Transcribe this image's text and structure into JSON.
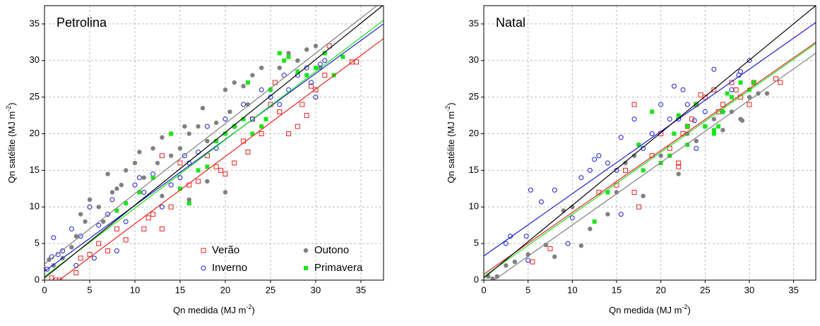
{
  "chart_data": [
    {
      "type": "scatter",
      "title": "Petrolina",
      "x_label": {
        "text": "Qn medida (MJ m",
        "sup": "-2",
        "end": ")"
      },
      "y_label": {
        "text": "Qn satélite (MJ m",
        "sup": "-2",
        "end": ")"
      },
      "xlim": [
        0,
        37.5
      ],
      "ylim": [
        0,
        37.5
      ],
      "xticks": [
        0,
        5,
        10,
        15,
        20,
        25,
        30,
        35
      ],
      "yticks": [
        0,
        5,
        10,
        15,
        20,
        25,
        30,
        35
      ],
      "grid": true,
      "legend": true,
      "legend_position": "lower right",
      "overall_fit": {
        "color": "#000000",
        "x": [
          0,
          37.5
        ],
        "y": [
          0.3,
          37.6
        ]
      },
      "series": [
        {
          "name": "Verão",
          "color": "#e8231f",
          "marker": "open-square",
          "x": [
            0.8,
            1.2,
            1.7,
            3.5,
            4,
            5,
            6,
            7,
            8,
            9,
            11,
            11.5,
            12,
            13,
            13,
            14,
            15,
            16,
            17,
            18,
            19,
            19.5,
            20,
            21,
            22,
            22.5,
            23,
            24,
            25,
            25.5,
            26,
            27,
            28,
            28.5,
            29,
            29.5,
            30,
            31,
            31.5,
            34,
            34.5
          ],
          "values": [
            0.3,
            0,
            0,
            1,
            3,
            3.5,
            5,
            4,
            7,
            5.5,
            7,
            8.5,
            9,
            7,
            17,
            10,
            16,
            13,
            13.5,
            17,
            15.5,
            15,
            14.5,
            16,
            19,
            17.5,
            22,
            20,
            24,
            27,
            23,
            20,
            21,
            24,
            22.5,
            26.5,
            26,
            28,
            32,
            29.8,
            29.8
          ],
          "fit": {
            "x": [
              0,
              37.5
            ],
            "y": [
              -1.5,
              33
            ]
          }
        },
        {
          "name": "Outono",
          "color": "#808080",
          "marker": "filled-circle",
          "x": [
            0.5,
            1,
            2,
            3,
            3.5,
            4,
            4.5,
            5,
            6,
            6.5,
            7,
            7.5,
            8,
            8.5,
            9,
            10,
            10.5,
            11,
            12,
            12.5,
            13,
            14,
            14,
            15,
            15.5,
            16,
            17,
            17.5,
            18,
            19,
            20,
            20.5,
            21,
            22,
            22.5,
            23,
            24,
            25,
            26,
            27,
            28,
            29,
            30,
            30.5,
            20,
            18,
            16,
            13
          ],
          "values": [
            2.8,
            2,
            3,
            4.5,
            6,
            9,
            8,
            11,
            10,
            8,
            14.5,
            12,
            12.5,
            13,
            15,
            16,
            17.5,
            14,
            18,
            16,
            19.5,
            17,
            20,
            18,
            21,
            20,
            21,
            23.5,
            19,
            21.5,
            26,
            23,
            27,
            26.5,
            24,
            28,
            29,
            26,
            29,
            31,
            30,
            31.5,
            32,
            29,
            12,
            13.5,
            11,
            11.5
          ],
          "fit": {
            "x": [
              0,
              37.5
            ],
            "y": [
              2.2,
              38.2
            ]
          }
        },
        {
          "name": "Inverno",
          "color": "#1c1cd6",
          "marker": "open-circle",
          "x": [
            0.3,
            0.8,
            1,
            1.5,
            2,
            3,
            3.5,
            4,
            5,
            5.5,
            6,
            7,
            7.5,
            8,
            9,
            10,
            10.5,
            11,
            12,
            13,
            14,
            15,
            15.5,
            16,
            17,
            18,
            19,
            20,
            21,
            22,
            23,
            24,
            25,
            26,
            26.5,
            27,
            28,
            29,
            29.5,
            30,
            30.5,
            31
          ],
          "values": [
            1.5,
            3.2,
            5.8,
            3.5,
            4,
            7,
            2,
            6,
            10,
            3,
            7.5,
            9,
            11,
            4,
            8,
            13,
            14,
            12,
            14.5,
            10,
            13,
            14,
            17,
            16,
            17.5,
            21,
            18,
            22,
            21,
            24,
            22,
            26,
            25,
            24,
            28,
            26,
            28,
            29,
            27,
            25,
            29.5,
            30
          ],
          "fit": {
            "x": [
              0,
              37.5
            ],
            "y": [
              1.2,
              35
            ]
          }
        },
        {
          "name": "Primavera",
          "color": "#19e619",
          "marker": "filled-square",
          "x": [
            8,
            9,
            10.5,
            12,
            14,
            15,
            16,
            17,
            18,
            19,
            20,
            21,
            22,
            23,
            24,
            25,
            26,
            26.5,
            27,
            28,
            29,
            30,
            31,
            32,
            33,
            24.5,
            22.5
          ],
          "values": [
            9.5,
            10.5,
            12,
            14,
            20,
            12.5,
            10.5,
            15,
            15.5,
            19,
            20,
            21,
            22,
            20,
            21,
            26,
            31,
            30,
            30.5,
            28.5,
            28,
            29,
            31,
            28,
            30.5,
            22,
            27
          ],
          "fit": {
            "x": [
              0,
              37.5
            ],
            "y": [
              0.5,
              35.5
            ]
          }
        }
      ]
    },
    {
      "type": "scatter",
      "title": "Natal",
      "x_label": {
        "text": "Qn medida (MJ m",
        "sup": "-2",
        "end": ")"
      },
      "y_label": {
        "text": "Qn satélite (MJ m",
        "sup": "-2",
        "end": ")"
      },
      "xlim": [
        0,
        37.5
      ],
      "ylim": [
        0,
        37.5
      ],
      "xticks": [
        0,
        5,
        10,
        15,
        20,
        25,
        30,
        35
      ],
      "yticks": [
        0,
        5,
        10,
        15,
        20,
        25,
        30,
        35
      ],
      "grid": true,
      "legend": false,
      "overall_fit": {
        "color": "#000000",
        "x": [
          0,
          37.5
        ],
        "y": [
          0.3,
          37.5
        ]
      },
      "series": [
        {
          "name": "Verão",
          "color": "#e8231f",
          "marker": "open-square",
          "x": [
            5.5,
            7.5,
            13,
            15,
            16,
            17,
            17,
            17.5,
            19,
            20,
            21,
            22,
            22,
            22.5,
            23,
            24,
            25,
            26,
            27,
            28,
            29,
            30,
            30.5,
            33,
            33.5,
            24.5,
            28.5,
            26.5,
            23.5
          ],
          "values": [
            2.5,
            4.3,
            12,
            13,
            15,
            24,
            12,
            10,
            17,
            20,
            18,
            16,
            15.5,
            20,
            21,
            24,
            25,
            26,
            24,
            27,
            25,
            24,
            27,
            27.5,
            27,
            25.3,
            26,
            23,
            22
          ],
          "fit": {
            "x": [
              0,
              37.5
            ],
            "y": [
              0.8,
              32.5
            ]
          }
        },
        {
          "name": "Outono",
          "color": "#808080",
          "marker": "filled-circle",
          "x": [
            0.5,
            1,
            1.5,
            2.5,
            3.5,
            5,
            7,
            8,
            9,
            10,
            11,
            12,
            14,
            15,
            16,
            17,
            18,
            20,
            21,
            22,
            23,
            24,
            25,
            26,
            28,
            29,
            30,
            31,
            32,
            27,
            29.2
          ],
          "values": [
            0.5,
            0.2,
            0.5,
            2,
            2.5,
            3.5,
            4.8,
            3.2,
            9.5,
            10,
            4.7,
            7,
            9,
            12,
            16,
            17,
            11.5,
            17,
            17,
            14.5,
            20,
            19,
            21,
            22,
            23,
            22,
            25,
            25.5,
            25.5,
            20.5,
            21.8
          ],
          "fit": {
            "x": [
              0,
              37.5
            ],
            "y": [
              -1,
              31
            ]
          }
        },
        {
          "name": "Inverno",
          "color": "#1c1cd6",
          "marker": "open-circle",
          "x": [
            2.5,
            3,
            4.8,
            5,
            5.3,
            6.5,
            8,
            9.5,
            10,
            11,
            12,
            12.5,
            13,
            14,
            15,
            15.5,
            15.5,
            17,
            18,
            19,
            20,
            21,
            21.5,
            22,
            22.5,
            23,
            24,
            25,
            26,
            27,
            28,
            29,
            30,
            28.8,
            23.8
          ],
          "values": [
            5,
            6,
            6,
            2.7,
            12.3,
            10.7,
            12.3,
            5,
            8.5,
            14,
            15,
            16.5,
            17,
            16,
            15,
            19.5,
            9,
            22,
            18,
            20,
            24,
            22,
            26.5,
            22,
            26,
            24,
            18,
            23,
            28.8,
            23,
            26,
            28.5,
            30,
            28,
            21.8
          ],
          "fit": {
            "x": [
              0,
              37.5
            ],
            "y": [
              3.3,
              35.2
            ]
          }
        },
        {
          "name": "Primavera",
          "color": "#19e619",
          "marker": "filled-square",
          "x": [
            12.5,
            14,
            17.5,
            18,
            19,
            20,
            21,
            21.5,
            22,
            23,
            24,
            25,
            26,
            26.5,
            27,
            27.5,
            28,
            29,
            30,
            30.5,
            26,
            23
          ],
          "values": [
            8,
            12,
            18.5,
            15,
            23,
            16,
            17,
            20,
            22.5,
            21,
            24,
            21,
            20,
            21,
            23,
            25.5,
            25,
            27,
            26,
            27,
            20.5,
            18.5
          ],
          "fit": {
            "x": [
              0,
              37.5
            ],
            "y": [
              0.5,
              32.3
            ]
          }
        }
      ]
    }
  ]
}
